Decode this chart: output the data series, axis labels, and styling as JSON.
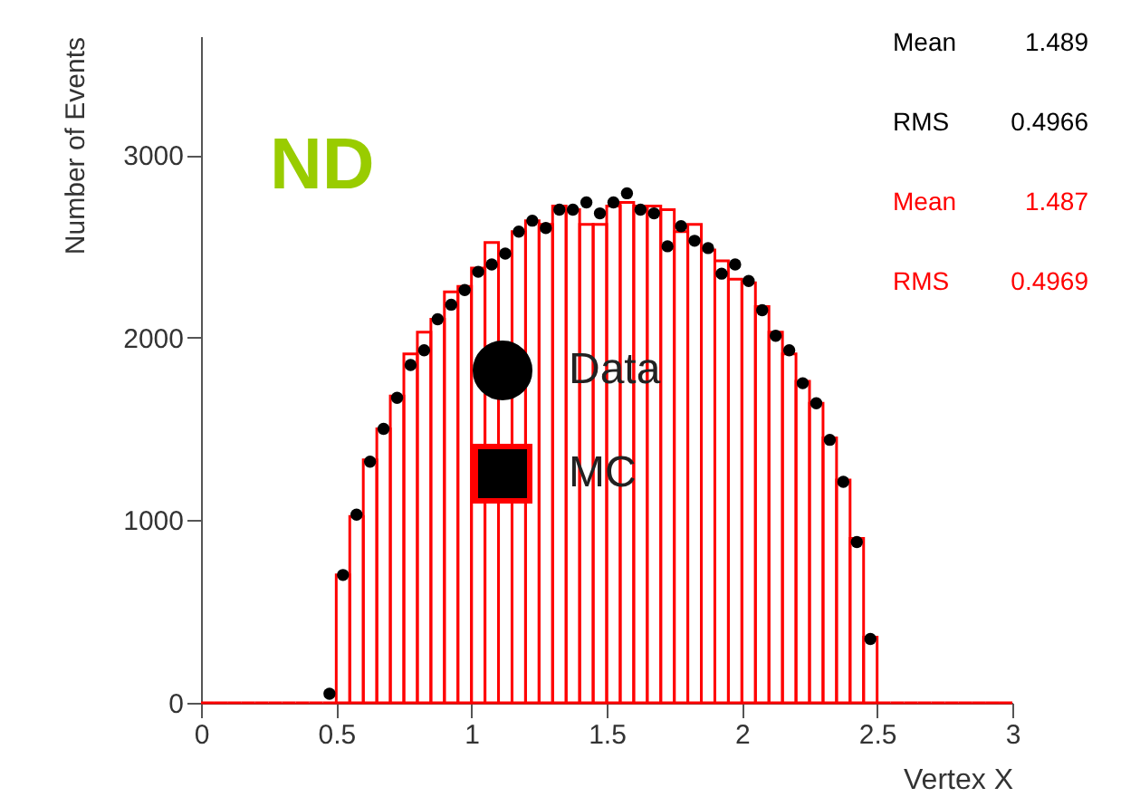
{
  "chart_data": {
    "type": "histogram",
    "title": "ND",
    "xlabel": "Vertex X",
    "ylabel": "Number of Events",
    "bins": [
      0,
      0.05,
      0.1,
      0.15,
      0.2,
      0.25,
      0.3,
      0.35,
      0.4,
      0.45,
      0.5,
      0.55,
      0.6,
      0.65,
      0.7,
      0.75,
      0.8,
      0.85,
      0.9,
      0.95,
      1,
      1.05,
      1.1,
      1.15,
      1.2,
      1.25,
      1.3,
      1.35,
      1.4,
      1.45,
      1.5,
      1.55,
      1.6,
      1.65,
      1.7,
      1.75,
      1.8,
      1.85,
      1.9,
      1.95,
      2,
      2.05,
      2.1,
      2.15,
      2.2,
      2.25,
      2.3,
      2.35,
      2.4,
      2.45,
      2.5,
      2.55,
      2.6,
      2.65,
      2.7,
      2.75,
      2.8,
      2.85,
      2.9,
      2.95,
      3
    ],
    "series": [
      {
        "name": "MC",
        "type": "histogram",
        "color": "#ff0000",
        "values": [
          0,
          0,
          0,
          0,
          0,
          0,
          0,
          0,
          0,
          0,
          700,
          1020,
          1330,
          1500,
          1680,
          1910,
          2030,
          2100,
          2250,
          2280,
          2380,
          2520,
          2470,
          2580,
          2640,
          2620,
          2720,
          2700,
          2620,
          2620,
          2720,
          2740,
          2720,
          2720,
          2700,
          2580,
          2620,
          2480,
          2420,
          2320,
          2300,
          2170,
          2030,
          1910,
          1760,
          1640,
          1450,
          1220,
          900,
          360,
          0,
          0,
          0,
          0,
          0,
          0,
          0,
          0,
          0,
          0
        ]
      },
      {
        "name": "Data",
        "type": "scatter",
        "color": "#000000",
        "x": [
          0.475,
          0.525,
          0.575,
          0.625,
          0.675,
          0.725,
          0.775,
          0.825,
          0.875,
          0.925,
          0.975,
          1.025,
          1.075,
          1.125,
          1.175,
          1.225,
          1.275,
          1.325,
          1.375,
          1.425,
          1.475,
          1.525,
          1.575,
          1.625,
          1.675,
          1.725,
          1.775,
          1.825,
          1.875,
          1.925,
          1.975,
          2.025,
          2.075,
          2.125,
          2.175,
          2.225,
          2.275,
          2.325,
          2.375,
          2.425,
          2.475
        ],
        "values": [
          50,
          700,
          1030,
          1320,
          1500,
          1670,
          1850,
          1930,
          2100,
          2180,
          2260,
          2360,
          2400,
          2460,
          2580,
          2640,
          2600,
          2700,
          2700,
          2740,
          2680,
          2740,
          2790,
          2700,
          2680,
          2500,
          2610,
          2530,
          2490,
          2350,
          2400,
          2310,
          2150,
          2010,
          1930,
          1750,
          1640,
          1440,
          1210,
          880,
          350
        ]
      }
    ],
    "annotations": [
      "Mean    1.489",
      "RMS   0.4966",
      "Mean    1.487",
      "RMS   0.4969"
    ],
    "xlim": [
      0,
      3
    ],
    "xticks": [
      0,
      0.5,
      1,
      1.5,
      2,
      2.5,
      3
    ],
    "ylim": [
      0,
      3650
    ],
    "yticks": [
      0,
      1000,
      2000,
      3000
    ],
    "grid": false,
    "legend": "left",
    "marker": "circle"
  }
}
